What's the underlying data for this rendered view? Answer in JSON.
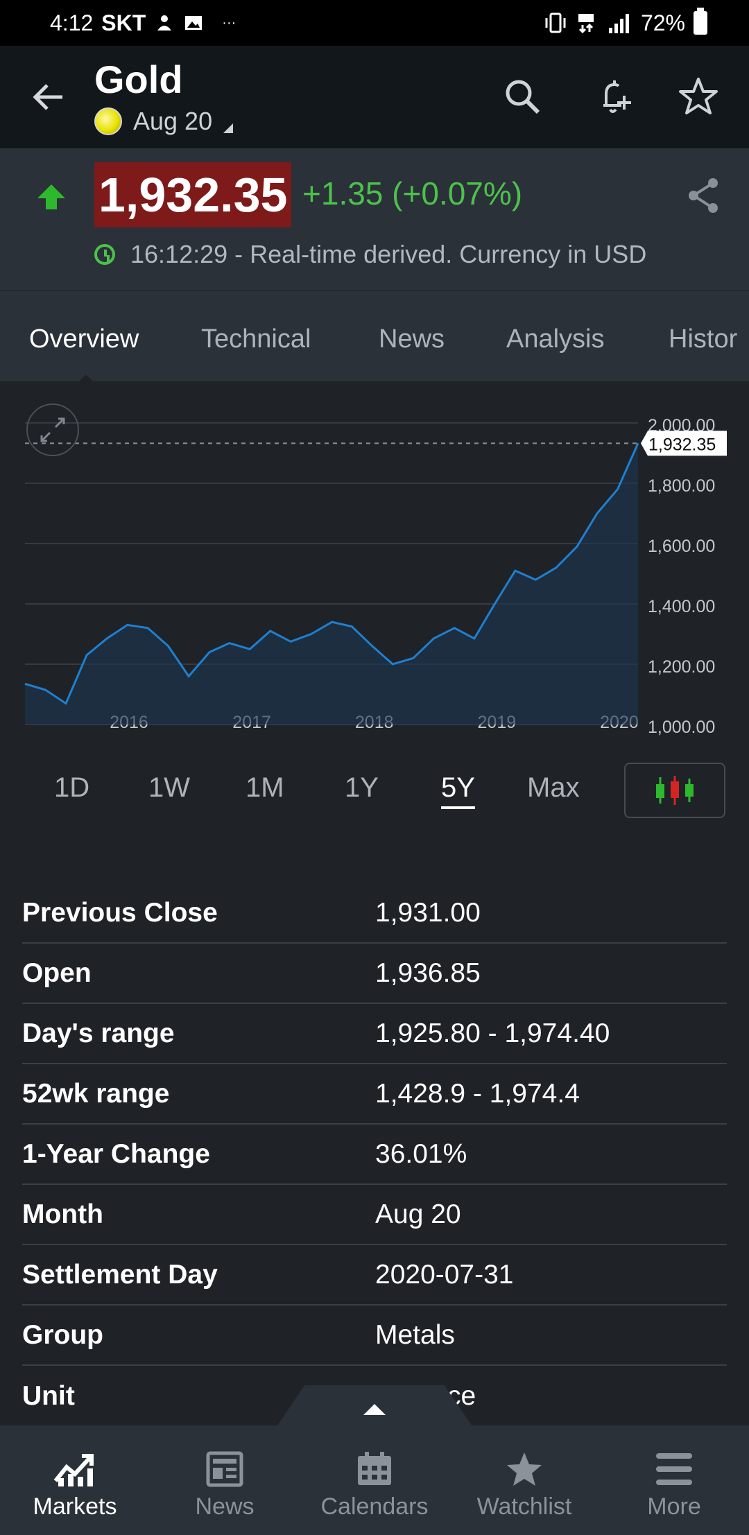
{
  "status_bar": {
    "time": "4:12",
    "carrier": "SKT",
    "dots": "···",
    "battery": "72%"
  },
  "header": {
    "title": "Gold",
    "subtitle": "Aug 20"
  },
  "quote": {
    "price": "1,932.35",
    "change": "+1.35 (+0.07%)",
    "time": "16:12:29 - Real-time derived. Currency in USD",
    "accent_up": "#4cc24c",
    "price_bg": "#7e1a1a"
  },
  "tabs": [
    "Overview",
    "Technical",
    "News",
    "Analysis",
    "Histor"
  ],
  "chart_data": {
    "type": "area",
    "x": [
      "2015-08",
      "2015-10",
      "2015-12",
      "2016-02",
      "2016-04",
      "2016-06",
      "2016-08",
      "2016-10",
      "2016-12",
      "2017-02",
      "2017-04",
      "2017-06",
      "2017-08",
      "2017-10",
      "2017-12",
      "2018-02",
      "2018-04",
      "2018-06",
      "2018-08",
      "2018-10",
      "2018-12",
      "2019-02",
      "2019-04",
      "2019-06",
      "2019-08",
      "2019-10",
      "2019-12",
      "2020-02",
      "2020-04",
      "2020-06",
      "2020-08"
    ],
    "values": [
      1135,
      1115,
      1070,
      1230,
      1285,
      1330,
      1320,
      1260,
      1160,
      1240,
      1270,
      1250,
      1310,
      1275,
      1300,
      1340,
      1325,
      1260,
      1200,
      1220,
      1285,
      1320,
      1285,
      1400,
      1510,
      1480,
      1520,
      1590,
      1700,
      1780,
      1932.35
    ],
    "x_ticks": [
      "2016",
      "2017",
      "2018",
      "2019",
      "2020"
    ],
    "y_ticks": [
      "2,000.00",
      "1,800.00",
      "1,600.00",
      "1,400.00",
      "1,200.00",
      "1,000.00"
    ],
    "ylim": [
      1000,
      2000
    ],
    "current_label": "1,932.35",
    "line_color": "#1f7fd0",
    "grid": true
  },
  "ranges": [
    "1D",
    "1W",
    "1M",
    "1Y",
    "5Y",
    "Max"
  ],
  "active_range": "5Y",
  "stats": [
    {
      "k": "Previous Close",
      "v": "1,931.00"
    },
    {
      "k": "Open",
      "v": "1,936.85"
    },
    {
      "k": "Day's range",
      "v": "1,925.80 - 1,974.40"
    },
    {
      "k": "52wk range",
      "v": "1,428.9 - 1,974.4"
    },
    {
      "k": "1-Year Change",
      "v": "36.01%"
    },
    {
      "k": "Month",
      "v": "Aug 20"
    },
    {
      "k": "Settlement Day",
      "v": "2020-07-31"
    },
    {
      "k": "Group",
      "v": "Metals"
    },
    {
      "k": "Unit",
      "v": "y Ounce"
    }
  ],
  "bottom_nav": [
    "Markets",
    "News",
    "Calendars",
    "Watchlist",
    "More"
  ]
}
